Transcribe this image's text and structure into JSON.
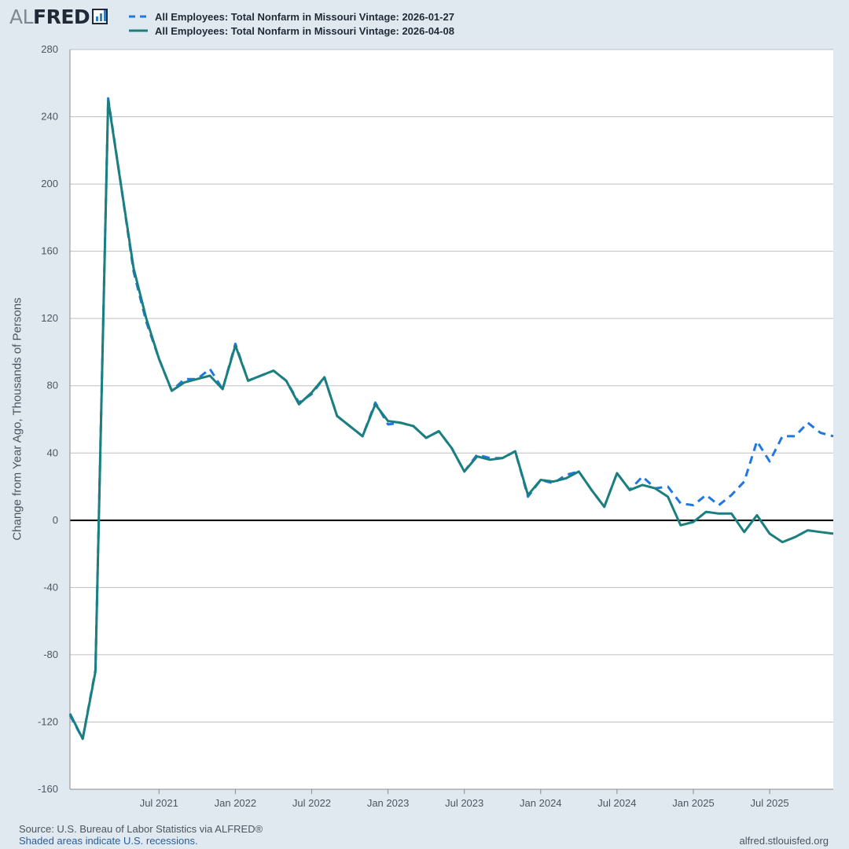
{
  "brand": {
    "logo_prefix": "AL",
    "logo_main": "FRED"
  },
  "chart_data": {
    "type": "line",
    "title": "",
    "ylabel": "Change from Year Ago, Thousands of Persons",
    "xlabel": "",
    "ylim": [
      -160,
      280
    ],
    "xlim": [
      "2020-12",
      "2025-12"
    ],
    "yticks": [
      280,
      240,
      200,
      160,
      120,
      80,
      40,
      0,
      -40,
      -80,
      -120,
      -160
    ],
    "xticks": [
      {
        "label": "Jul 2021",
        "date": "2021-07"
      },
      {
        "label": "Jan 2022",
        "date": "2022-01"
      },
      {
        "label": "Jul 2022",
        "date": "2022-07"
      },
      {
        "label": "Jan 2023",
        "date": "2023-01"
      },
      {
        "label": "Jul 2023",
        "date": "2023-07"
      },
      {
        "label": "Jan 2024",
        "date": "2024-01"
      },
      {
        "label": "Jul 2024",
        "date": "2024-07"
      },
      {
        "label": "Jan 2025",
        "date": "2025-01"
      },
      {
        "label": "Jul 2025",
        "date": "2025-07"
      }
    ],
    "grid": true,
    "legend_position": "top-left",
    "series": [
      {
        "name": "All Employees: Total Nonfarm in Missouri Vintage: 2026-01-27",
        "color": "#1f77e4",
        "dash": true,
        "x": [
          "2020-12",
          "2021-01",
          "2021-02",
          "2021-03",
          "2021-04",
          "2021-05",
          "2021-06",
          "2021-07",
          "2021-08",
          "2021-09",
          "2021-10",
          "2021-11",
          "2021-12",
          "2022-01",
          "2022-02",
          "2022-03",
          "2022-04",
          "2022-05",
          "2022-06",
          "2022-07",
          "2022-08",
          "2022-09",
          "2022-10",
          "2022-11",
          "2022-12",
          "2023-01",
          "2023-02",
          "2023-03",
          "2023-04",
          "2023-05",
          "2023-06",
          "2023-07",
          "2023-08",
          "2023-09",
          "2023-10",
          "2023-11",
          "2023-12",
          "2024-01",
          "2024-02",
          "2024-03",
          "2024-04",
          "2024-05",
          "2024-06",
          "2024-07",
          "2024-08",
          "2024-09",
          "2024-10",
          "2024-11",
          "2024-12",
          "2025-01",
          "2025-02",
          "2025-03",
          "2025-04",
          "2025-05",
          "2025-06",
          "2025-07",
          "2025-08",
          "2025-09",
          "2025-10",
          "2025-11",
          "2025-12"
        ],
        "y": [
          -116,
          -130,
          -89,
          251,
          200,
          148,
          118,
          96,
          77,
          84,
          84,
          90,
          78,
          105,
          83,
          86,
          89,
          83,
          70,
          75,
          85,
          62,
          56,
          50,
          70,
          57,
          58,
          56,
          49,
          53,
          43,
          29,
          39,
          37,
          37,
          41,
          14,
          24,
          22,
          27,
          29,
          18,
          8,
          28,
          18,
          26,
          19,
          20,
          10,
          9,
          15,
          9,
          15,
          23,
          47,
          35,
          50,
          50,
          58,
          52,
          50
        ]
      },
      {
        "name": "All Employees: Total Nonfarm in Missouri Vintage: 2026-04-08",
        "color": "#1b7f7f",
        "dash": false,
        "x": [
          "2020-12",
          "2021-01",
          "2021-02",
          "2021-03",
          "2021-04",
          "2021-05",
          "2021-06",
          "2021-07",
          "2021-08",
          "2021-09",
          "2021-10",
          "2021-11",
          "2021-12",
          "2022-01",
          "2022-02",
          "2022-03",
          "2022-04",
          "2022-05",
          "2022-06",
          "2022-07",
          "2022-08",
          "2022-09",
          "2022-10",
          "2022-11",
          "2022-12",
          "2023-01",
          "2023-02",
          "2023-03",
          "2023-04",
          "2023-05",
          "2023-06",
          "2023-07",
          "2023-08",
          "2023-09",
          "2023-10",
          "2023-11",
          "2023-12",
          "2024-01",
          "2024-02",
          "2024-03",
          "2024-04",
          "2024-05",
          "2024-06",
          "2024-07",
          "2024-08",
          "2024-09",
          "2024-10",
          "2024-11",
          "2024-12",
          "2025-01",
          "2025-02",
          "2025-03",
          "2025-04",
          "2025-05",
          "2025-06",
          "2025-07",
          "2025-08",
          "2025-09",
          "2025-10",
          "2025-11",
          "2025-12"
        ],
        "y": [
          -115,
          -130,
          -90,
          250,
          200,
          150,
          120,
          96,
          77,
          82,
          84,
          86,
          78,
          104,
          83,
          86,
          89,
          83,
          69,
          76,
          85,
          62,
          56,
          50,
          69,
          59,
          58,
          56,
          49,
          53,
          43,
          29,
          38,
          36,
          37,
          41,
          15,
          24,
          23,
          25,
          29,
          18,
          8,
          28,
          18,
          21,
          19,
          14,
          -3,
          -1,
          5,
          4,
          4,
          -7,
          3,
          -8,
          -13,
          -10,
          -6,
          -7,
          -8
        ]
      }
    ]
  },
  "footer": {
    "source": "Source: U.S. Bureau of Labor Statistics via ALFRED®",
    "recession_note": "Shaded areas indicate U.S. recessions.",
    "website": "alfred.stlouisfed.org"
  }
}
